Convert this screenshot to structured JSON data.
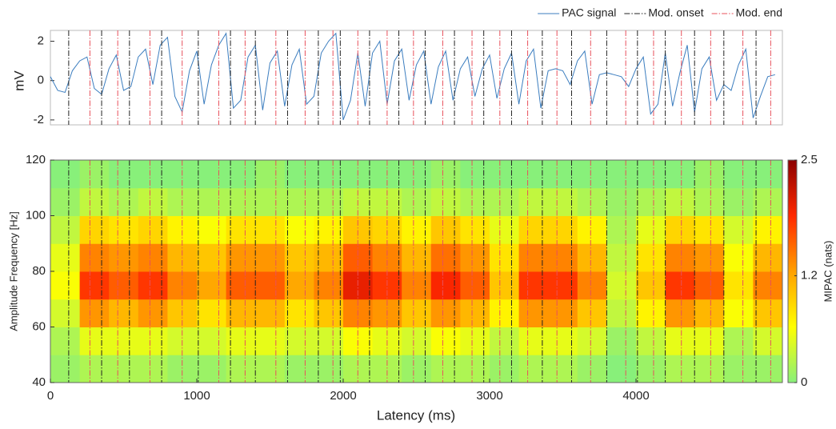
{
  "chart_data": [
    {
      "type": "line",
      "ylabel": "mV",
      "xlim": [
        0,
        5000
      ],
      "ylim": [
        -2.25,
        2.55
      ],
      "yticks": [
        -2,
        0,
        2
      ],
      "legend": "top-right",
      "x": [
        0,
        50,
        100,
        150,
        200,
        250,
        300,
        350,
        400,
        450,
        500,
        550,
        600,
        650,
        700,
        750,
        800,
        850,
        900,
        950,
        1000,
        1050,
        1100,
        1150,
        1200,
        1250,
        1300,
        1350,
        1400,
        1450,
        1500,
        1550,
        1600,
        1650,
        1700,
        1750,
        1800,
        1850,
        1900,
        1950,
        2000,
        2050,
        2100,
        2150,
        2200,
        2250,
        2300,
        2350,
        2400,
        2450,
        2500,
        2550,
        2600,
        2650,
        2700,
        2750,
        2800,
        2850,
        2900,
        2950,
        3000,
        3050,
        3100,
        3150,
        3200,
        3250,
        3300,
        3350,
        3400,
        3450,
        3500,
        3550,
        3600,
        3650,
        3700,
        3750,
        3800,
        3850,
        3900,
        3950,
        4000,
        4050,
        4100,
        4150,
        4200,
        4250,
        4300,
        4350,
        4400,
        4450,
        4500,
        4550,
        4600,
        4650,
        4700,
        4750,
        4800,
        4850,
        4900,
        4950
      ],
      "series": [
        {
          "name": "PAC signal",
          "color": "#3b7dbf",
          "values": [
            0.2,
            -0.5,
            -0.6,
            0.5,
            1.0,
            1.2,
            -0.4,
            -0.7,
            0.6,
            1.3,
            -0.5,
            -0.3,
            1.2,
            1.6,
            -0.2,
            1.8,
            2.2,
            -0.8,
            -1.6,
            0.5,
            1.5,
            -1.2,
            0.8,
            1.8,
            2.4,
            -1.4,
            -1.0,
            1.2,
            1.8,
            -1.5,
            0.9,
            1.5,
            -1.3,
            0.8,
            1.6,
            -1.2,
            -0.8,
            1.4,
            2.0,
            2.4,
            -2.0,
            -1.0,
            1.4,
            -1.3,
            1.4,
            2.0,
            -1.2,
            1.0,
            1.6,
            -1.0,
            0.8,
            1.5,
            -1.2,
            0.7,
            1.5,
            -1.0,
            0.6,
            1.2,
            -0.8,
            0.6,
            1.3,
            -0.9,
            0.6,
            1.4,
            -1.2,
            1.0,
            1.6,
            -1.4,
            0.5,
            0.6,
            0.5,
            -0.2,
            1.0,
            1.5,
            -1.2,
            0.3,
            0.4,
            0.3,
            0.2,
            -0.3,
            0.6,
            1.2,
            -1.7,
            -1.2,
            1.4,
            -1.3,
            0.4,
            1.8,
            -1.6,
            0.6,
            1.2,
            -1.0,
            -0.2,
            -0.5,
            0.8,
            1.6,
            -1.9,
            -0.8,
            0.2,
            0.3
          ]
        },
        {
          "name": "Mod. onset",
          "color": "#222222",
          "x": [
            125,
            350,
            540,
            760,
            1010,
            1230,
            1400,
            1620,
            1830,
            1980,
            2180,
            2380,
            2560,
            2760,
            2960,
            3150,
            3360,
            3560,
            3800,
            4010,
            4200,
            4400,
            4600,
            4820
          ]
        },
        {
          "name": "Mod. end",
          "color": "#e8505b",
          "x": [
            270,
            460,
            680,
            900,
            1150,
            1330,
            1540,
            1740,
            1930,
            2100,
            2300,
            2480,
            2680,
            2880,
            3070,
            3260,
            3460,
            3690,
            3930,
            4120,
            4310,
            4510,
            4730,
            4920
          ]
        }
      ]
    },
    {
      "type": "heatmap",
      "xlabel": "Latency (ms)",
      "ylabel": "Amplitude Frequency [Hz]",
      "colorbar_label": "MIPAC (nats)",
      "xlim": [
        0,
        5000
      ],
      "xticks": [
        0,
        1000,
        2000,
        3000,
        4000
      ],
      "ylim": [
        40,
        120
      ],
      "yticks": [
        40,
        60,
        80,
        100,
        120
      ],
      "zlim": [
        0,
        2.5
      ],
      "zticks": [
        0,
        1.2,
        2.5
      ],
      "colormap": [
        "#88f07a",
        "#ffff00",
        "#ffa000",
        "#ff2800",
        "#8b0000"
      ],
      "x_bins": [
        0,
        200,
        400,
        600,
        800,
        1000,
        1200,
        1400,
        1600,
        1800,
        2000,
        2200,
        2400,
        2600,
        2800,
        3000,
        3200,
        3400,
        3600,
        3800,
        4000,
        4200,
        4400,
        4600,
        4800,
        5000
      ],
      "y_bins": [
        40,
        50,
        60,
        70,
        80,
        90,
        100,
        110,
        120
      ],
      "z": [
        [
          0.1,
          0.2,
          0.2,
          0.2,
          0.1,
          0.1,
          0.2,
          0.2,
          0.1,
          0.1,
          0.2,
          0.2,
          0.1,
          0.2,
          0.2,
          0.1,
          0.2,
          0.2,
          0.1,
          0.0,
          0.1,
          0.2,
          0.2,
          0.1,
          0.1
        ],
        [
          0.2,
          0.5,
          0.5,
          0.5,
          0.4,
          0.4,
          0.5,
          0.5,
          0.4,
          0.4,
          0.6,
          0.5,
          0.4,
          0.6,
          0.5,
          0.3,
          0.5,
          0.5,
          0.4,
          0.1,
          0.3,
          0.5,
          0.5,
          0.2,
          0.4
        ],
        [
          0.4,
          1.3,
          1.1,
          1.3,
          1.0,
          0.8,
          1.1,
          1.1,
          0.8,
          1.0,
          1.4,
          1.3,
          1.0,
          1.3,
          1.1,
          0.7,
          1.3,
          1.3,
          1.0,
          0.3,
          0.7,
          1.3,
          1.1,
          0.6,
          1.0
        ],
        [
          0.6,
          1.8,
          1.6,
          1.8,
          1.4,
          1.2,
          1.6,
          1.6,
          1.2,
          1.4,
          2.0,
          1.8,
          1.4,
          1.9,
          1.6,
          1.0,
          1.8,
          1.8,
          1.4,
          0.4,
          1.0,
          1.8,
          1.6,
          0.8,
          1.4
        ],
        [
          0.5,
          1.4,
          1.3,
          1.4,
          1.1,
          1.0,
          1.3,
          1.3,
          1.0,
          1.1,
          1.6,
          1.4,
          1.1,
          1.5,
          1.3,
          0.8,
          1.4,
          1.4,
          1.1,
          0.3,
          0.8,
          1.4,
          1.3,
          0.6,
          1.1
        ],
        [
          0.3,
          0.9,
          0.8,
          0.9,
          0.7,
          0.6,
          0.8,
          0.8,
          0.6,
          0.7,
          1.0,
          0.9,
          0.7,
          1.0,
          0.8,
          0.5,
          0.9,
          0.9,
          0.7,
          0.2,
          0.5,
          0.9,
          0.8,
          0.4,
          0.7
        ],
        [
          0.1,
          0.3,
          0.2,
          0.3,
          0.2,
          0.2,
          0.2,
          0.2,
          0.2,
          0.2,
          0.3,
          0.3,
          0.2,
          0.3,
          0.2,
          0.2,
          0.3,
          0.3,
          0.2,
          0.1,
          0.2,
          0.3,
          0.2,
          0.1,
          0.2
        ],
        [
          0.0,
          0.1,
          0.0,
          0.0,
          0.0,
          0.0,
          0.0,
          0.1,
          0.0,
          0.0,
          0.0,
          0.0,
          0.0,
          0.1,
          0.0,
          0.0,
          0.0,
          0.0,
          0.0,
          0.0,
          0.0,
          0.0,
          0.1,
          0.0,
          0.0
        ]
      ]
    }
  ]
}
